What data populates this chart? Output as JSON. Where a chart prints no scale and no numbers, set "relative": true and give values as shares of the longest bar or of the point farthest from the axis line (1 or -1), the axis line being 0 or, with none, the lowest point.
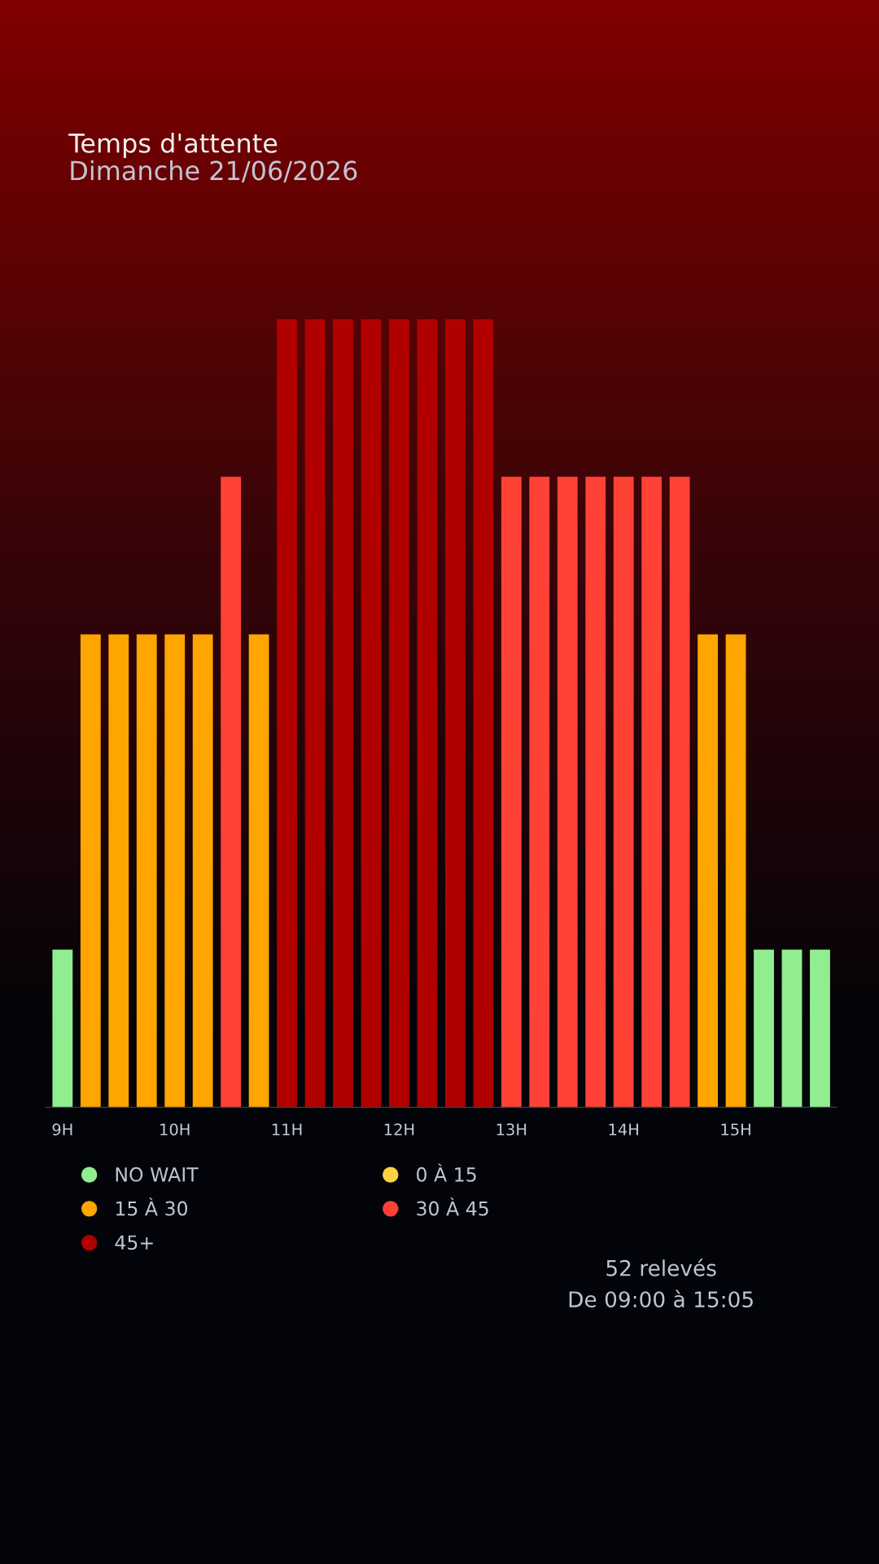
{
  "chart_data": {
    "type": "bar",
    "title": "Temps d'attente",
    "subtitle": "Dimanche 21/06/2026",
    "relative": true,
    "categories": [
      "9H",
      null,
      null,
      null,
      "10H",
      null,
      null,
      null,
      "11H",
      null,
      null,
      null,
      "12H",
      null,
      null,
      null,
      "13H",
      null,
      null,
      null,
      "14H",
      null,
      null,
      null,
      "15H",
      null,
      null,
      null
    ],
    "series": [
      {
        "name": "NO WAIT",
        "color": "#90ee90",
        "values": [
          0.2,
          null,
          null,
          null,
          null,
          null,
          null,
          null,
          null,
          null,
          null,
          null,
          null,
          null,
          null,
          null,
          null,
          null,
          null,
          null,
          null,
          null,
          null,
          null,
          null,
          0.2,
          0.2,
          0.2
        ]
      },
      {
        "name": "0 À 15",
        "color": "#ffd23f",
        "values": [
          null,
          null,
          null,
          null,
          null,
          null,
          null,
          null,
          null,
          null,
          null,
          null,
          null,
          null,
          null,
          null,
          null,
          null,
          null,
          null,
          null,
          null,
          null,
          null,
          null,
          null,
          null,
          null
        ]
      },
      {
        "name": "15 À 30",
        "color": "#ffa500",
        "values": [
          null,
          0.6,
          0.6,
          0.6,
          0.6,
          0.6,
          null,
          0.6,
          null,
          null,
          null,
          null,
          null,
          null,
          null,
          null,
          null,
          null,
          null,
          null,
          null,
          null,
          null,
          0.6,
          0.6,
          null,
          null,
          null
        ]
      },
      {
        "name": "30 À 45",
        "color": "#ff4136",
        "values": [
          null,
          null,
          null,
          null,
          null,
          null,
          0.8,
          null,
          null,
          null,
          null,
          null,
          null,
          null,
          null,
          null,
          0.8,
          0.8,
          0.8,
          0.8,
          0.8,
          0.8,
          0.8,
          null,
          null,
          null,
          null,
          null
        ]
      },
      {
        "name": "45+",
        "color": "#b00000",
        "values": [
          null,
          null,
          null,
          null,
          null,
          null,
          null,
          null,
          1,
          1,
          1,
          1,
          1,
          1,
          1,
          1,
          null,
          null,
          null,
          null,
          null,
          null,
          null,
          null,
          null,
          null,
          null,
          null
        ]
      }
    ],
    "legend": "bottom left",
    "grid": false,
    "annotations": [
      "52 relevés",
      "De 09:00 à 15:05"
    ]
  }
}
